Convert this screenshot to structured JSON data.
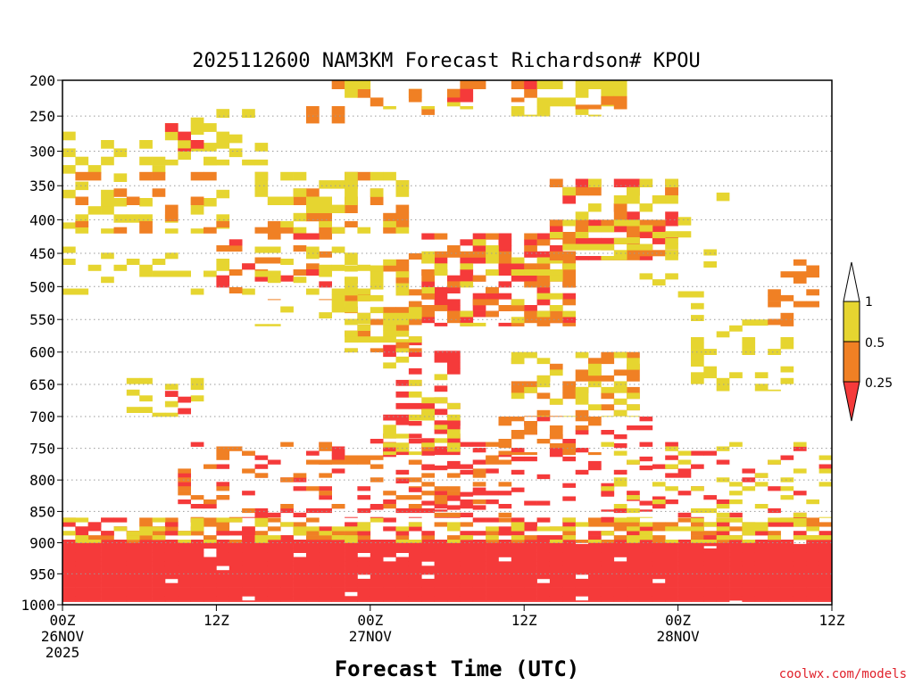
{
  "chart_data": {
    "type": "heatmap",
    "title": "2025112600 NAM3KM Forecast Richardson# KPOU",
    "xlabel": "Forecast Time (UTC)",
    "ylabel": "",
    "credit": "coolwx.com/models",
    "x_range_hours": [
      0,
      60
    ],
    "y_range_hpa": [
      1000,
      200
    ],
    "y_axis": "pressure (inverted, log-like)",
    "y_ticks": [
      "200",
      "250",
      "300",
      "350",
      "400",
      "450",
      "500",
      "550",
      "600",
      "650",
      "700",
      "750",
      "800",
      "850",
      "900",
      "950",
      "1000"
    ],
    "y_tick_values": [
      200,
      250,
      300,
      350,
      400,
      450,
      500,
      550,
      600,
      650,
      700,
      750,
      800,
      850,
      900,
      950,
      1000
    ],
    "x_ticks": [
      {
        "hour": 0,
        "lines": [
          "00Z",
          "26NOV",
          "2025"
        ]
      },
      {
        "hour": 12,
        "lines": [
          "12Z"
        ]
      },
      {
        "hour": 24,
        "lines": [
          "00Z",
          "27NOV"
        ]
      },
      {
        "hour": 36,
        "lines": [
          "12Z"
        ]
      },
      {
        "hour": 48,
        "lines": [
          "00Z",
          "28NOV"
        ]
      },
      {
        "hour": 60,
        "lines": [
          "12Z"
        ]
      }
    ],
    "grid": "dotted horizontal at pressure ticks",
    "legend": {
      "placement": "right",
      "labels": [
        "1",
        "0.5",
        "0.25"
      ],
      "bins": [
        {
          "range": "0.5 to 1",
          "color": "#e6d530"
        },
        {
          "range": "0.25 to 0.5",
          "color": "#f08024"
        },
        {
          "range": "below 0.25",
          "color": "#f53a3a"
        }
      ]
    },
    "colors": {
      "red": "#f53a3a",
      "orange": "#f08024",
      "yellow": "#e6d530",
      "ground": "#9c5a30"
    },
    "ground_hpa": 1000,
    "clusters": [
      {
        "x": [
          0,
          60
        ],
        "y": [
          895,
          995
        ],
        "c": "red",
        "d": 0.97
      },
      {
        "x": [
          0,
          60
        ],
        "y": [
          860,
          900
        ],
        "c": "orange",
        "d": 0.35
      },
      {
        "x": [
          0,
          60
        ],
        "y": [
          860,
          905
        ],
        "c": "red",
        "d": 0.25
      },
      {
        "x": [
          0,
          60
        ],
        "y": [
          860,
          900
        ],
        "c": "yellow",
        "d": 0.25
      },
      {
        "x": [
          9,
          35
        ],
        "y": [
          740,
          860
        ],
        "c": "red",
        "d": 0.18
      },
      {
        "x": [
          9,
          35
        ],
        "y": [
          740,
          860
        ],
        "c": "orange",
        "d": 0.14
      },
      {
        "x": [
          24,
          47
        ],
        "y": [
          700,
          850
        ],
        "c": "red",
        "d": 0.12
      },
      {
        "x": [
          34,
          42
        ],
        "y": [
          700,
          760
        ],
        "c": "orange",
        "d": 0.4
      },
      {
        "x": [
          42,
          60
        ],
        "y": [
          740,
          860
        ],
        "c": "red",
        "d": 0.1
      },
      {
        "x": [
          42,
          60
        ],
        "y": [
          740,
          860
        ],
        "c": "yellow",
        "d": 0.12
      },
      {
        "x": [
          25,
          31
        ],
        "y": [
          580,
          760
        ],
        "c": "red",
        "d": 0.3
      },
      {
        "x": [
          25,
          31
        ],
        "y": [
          580,
          760
        ],
        "c": "yellow",
        "d": 0.25
      },
      {
        "x": [
          35,
          45
        ],
        "y": [
          600,
          700
        ],
        "c": "orange",
        "d": 0.25
      },
      {
        "x": [
          35,
          45
        ],
        "y": [
          600,
          700
        ],
        "c": "yellow",
        "d": 0.3
      },
      {
        "x": [
          5,
          11
        ],
        "y": [
          640,
          700
        ],
        "c": "yellow",
        "d": 0.35
      },
      {
        "x": [
          6,
          10
        ],
        "y": [
          660,
          700
        ],
        "c": "red",
        "d": 0.3
      },
      {
        "x": [
          49,
          57
        ],
        "y": [
          550,
          660
        ],
        "c": "yellow",
        "d": 0.35
      },
      {
        "x": [
          55,
          59
        ],
        "y": [
          450,
          560
        ],
        "c": "orange",
        "d": 0.3
      },
      {
        "x": [
          28,
          40
        ],
        "y": [
          420,
          560
        ],
        "c": "red",
        "d": 0.3
      },
      {
        "x": [
          28,
          40
        ],
        "y": [
          420,
          560
        ],
        "c": "orange",
        "d": 0.3
      },
      {
        "x": [
          28,
          40
        ],
        "y": [
          420,
          560
        ],
        "c": "yellow",
        "d": 0.2
      },
      {
        "x": [
          22,
          28
        ],
        "y": [
          450,
          600
        ],
        "c": "orange",
        "d": 0.25
      },
      {
        "x": [
          22,
          28
        ],
        "y": [
          450,
          600
        ],
        "c": "yellow",
        "d": 0.3
      },
      {
        "x": [
          38,
          48
        ],
        "y": [
          340,
          460
        ],
        "c": "red",
        "d": 0.25
      },
      {
        "x": [
          38,
          48
        ],
        "y": [
          340,
          460
        ],
        "c": "orange",
        "d": 0.25
      },
      {
        "x": [
          38,
          48
        ],
        "y": [
          340,
          460
        ],
        "c": "yellow",
        "d": 0.3
      },
      {
        "x": [
          15,
          27
        ],
        "y": [
          330,
          420
        ],
        "c": "orange",
        "d": 0.3
      },
      {
        "x": [
          15,
          27
        ],
        "y": [
          330,
          420
        ],
        "c": "yellow",
        "d": 0.3
      },
      {
        "x": [
          0,
          14
        ],
        "y": [
          260,
          420
        ],
        "c": "yellow",
        "d": 0.3
      },
      {
        "x": [
          0,
          14
        ],
        "y": [
          330,
          420
        ],
        "c": "orange",
        "d": 0.2
      },
      {
        "x": [
          8,
          16
        ],
        "y": [
          240,
          320
        ],
        "c": "yellow",
        "d": 0.4
      },
      {
        "x": [
          8,
          11
        ],
        "y": [
          260,
          300
        ],
        "c": "red",
        "d": 0.3
      },
      {
        "x": [
          18,
          30
        ],
        "y": [
          200,
          260
        ],
        "c": "orange",
        "d": 0.2
      },
      {
        "x": [
          22,
          32
        ],
        "y": [
          200,
          240
        ],
        "c": "yellow",
        "d": 0.25
      },
      {
        "x": [
          26,
          38
        ],
        "y": [
          200,
          230
        ],
        "c": "orange",
        "d": 0.35
      },
      {
        "x": [
          26,
          38
        ],
        "y": [
          200,
          230
        ],
        "c": "red",
        "d": 0.15
      },
      {
        "x": [
          35,
          44
        ],
        "y": [
          200,
          250
        ],
        "c": "yellow",
        "d": 0.4
      },
      {
        "x": [
          40,
          44
        ],
        "y": [
          210,
          240
        ],
        "c": "orange",
        "d": 0.3
      },
      {
        "x": [
          0,
          15
        ],
        "y": [
          440,
          520
        ],
        "c": "yellow",
        "d": 0.12
      },
      {
        "x": [
          12,
          21
        ],
        "y": [
          420,
          520
        ],
        "c": "orange",
        "d": 0.25
      },
      {
        "x": [
          12,
          21
        ],
        "y": [
          420,
          520
        ],
        "c": "red",
        "d": 0.12
      },
      {
        "x": [
          15,
          24
        ],
        "y": [
          440,
          560
        ],
        "c": "yellow",
        "d": 0.2
      },
      {
        "x": [
          44,
          52
        ],
        "y": [
          360,
          560
        ],
        "c": "yellow",
        "d": 0.08
      }
    ]
  }
}
